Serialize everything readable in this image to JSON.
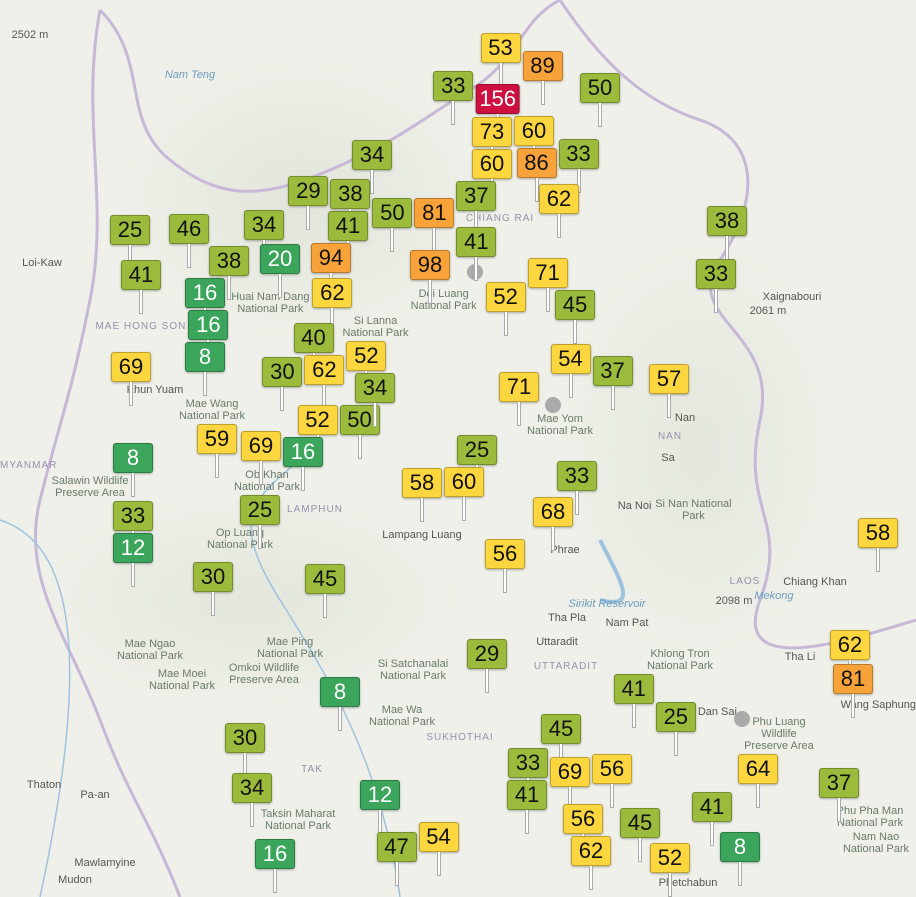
{
  "map": {
    "aqi_colors": {
      "good": "#3aa55b",
      "moderate_low": "#9cbb3c",
      "moderate": "#fcd63e",
      "unhealthy_sensitive": "#f7a33a",
      "unhealthy": "#cd1040"
    },
    "places": [
      {
        "name": "2502 m",
        "kind": "place"
      },
      {
        "name": "Nam Teng",
        "kind": "water"
      },
      {
        "name": "Loi-Kaw",
        "kind": "place"
      },
      {
        "name": "MAE HONG SON",
        "kind": "region"
      },
      {
        "name": "Khun Yuam",
        "kind": "place"
      },
      {
        "name": "Mae Wang National Park",
        "kind": "park"
      },
      {
        "name": "Huai Nam Dang National Park",
        "kind": "park"
      },
      {
        "name": "Ob Khan National Park",
        "kind": "park"
      },
      {
        "name": "Si Lanna National Park",
        "kind": "park"
      },
      {
        "name": "MYANMAR",
        "kind": "region"
      },
      {
        "name": "Salawin Wildlife Preserve Area",
        "kind": "park"
      },
      {
        "name": "Op Luang National Park",
        "kind": "park"
      },
      {
        "name": "LAMPHUN",
        "kind": "region"
      },
      {
        "name": "Lampang Luang",
        "kind": "place"
      },
      {
        "name": "Doi Luang National Park",
        "kind": "park"
      },
      {
        "name": "CHIANG RAI",
        "kind": "region"
      },
      {
        "name": "Mae Yom National Park",
        "kind": "park"
      },
      {
        "name": "Phrae",
        "kind": "place"
      },
      {
        "name": "Nan",
        "kind": "place"
      },
      {
        "name": "NAN",
        "kind": "region"
      },
      {
        "name": "Sa",
        "kind": "place"
      },
      {
        "name": "Xaignabouri",
        "kind": "place"
      },
      {
        "name": "2061 m",
        "kind": "place"
      },
      {
        "name": "Mae Ngao National Park",
        "kind": "park"
      },
      {
        "name": "Mae Moei National Park",
        "kind": "park"
      },
      {
        "name": "Omkoi Wildlife Preserve Area",
        "kind": "park"
      },
      {
        "name": "Mae Ping National Park",
        "kind": "park"
      },
      {
        "name": "Si Satchanalai National Park",
        "kind": "park"
      },
      {
        "name": "Mae Wa National Park",
        "kind": "park"
      },
      {
        "name": "SUKHOTHAI",
        "kind": "region"
      },
      {
        "name": "TAK",
        "kind": "region"
      },
      {
        "name": "Uttaradit",
        "kind": "place"
      },
      {
        "name": "UTTARADIT",
        "kind": "region"
      },
      {
        "name": "Tha Pla",
        "kind": "place"
      },
      {
        "name": "Nam Pat",
        "kind": "place"
      },
      {
        "name": "Sirikit Reservoir",
        "kind": "water"
      },
      {
        "name": "Khlong Tron National Park",
        "kind": "park"
      },
      {
        "name": "LAOS",
        "kind": "region"
      },
      {
        "name": "2098 m",
        "kind": "place"
      },
      {
        "name": "Chiang Khan",
        "kind": "place"
      },
      {
        "name": "Tha Li",
        "kind": "place"
      },
      {
        "name": "Dan Sai",
        "kind": "place"
      },
      {
        "name": "Phu Luang Wildlife Preserve Area",
        "kind": "park"
      },
      {
        "name": "Thaton",
        "kind": "place"
      },
      {
        "name": "Pa-an",
        "kind": "place"
      },
      {
        "name": "Mawlamyine",
        "kind": "place"
      },
      {
        "name": "Mudon",
        "kind": "place"
      },
      {
        "name": "Taksin Maharat National Park",
        "kind": "park"
      },
      {
        "name": "Nam Nao National Park",
        "kind": "park"
      },
      {
        "name": "Phu Pha Man National Park",
        "kind": "park"
      },
      {
        "name": "Phetchabun",
        "kind": "place"
      },
      {
        "name": "Mekong",
        "kind": "water"
      },
      {
        "name": "Wang Saphung",
        "kind": "place"
      },
      {
        "name": "Na Noi",
        "kind": "place"
      },
      {
        "name": "Si Nan National Park",
        "kind": "park"
      }
    ],
    "aqi_markers": [
      53,
      89,
      50,
      33,
      156,
      60,
      73,
      86,
      33,
      60,
      34,
      29,
      38,
      37,
      81,
      50,
      62,
      41,
      25,
      46,
      34,
      41,
      94,
      20,
      98,
      71,
      52,
      45,
      41,
      38,
      16,
      62,
      16,
      8,
      40,
      69,
      30,
      62,
      52,
      50,
      52,
      34,
      54,
      37,
      57,
      71,
      59,
      69,
      16,
      25,
      8,
      33,
      12,
      25,
      58,
      60,
      33,
      68,
      56,
      30,
      45,
      38,
      33,
      58,
      62,
      81,
      29,
      8,
      41,
      25,
      30,
      34,
      12,
      16,
      45,
      33,
      69,
      56,
      41,
      64,
      37,
      41,
      45,
      56,
      62,
      54,
      47,
      52,
      8
    ]
  }
}
